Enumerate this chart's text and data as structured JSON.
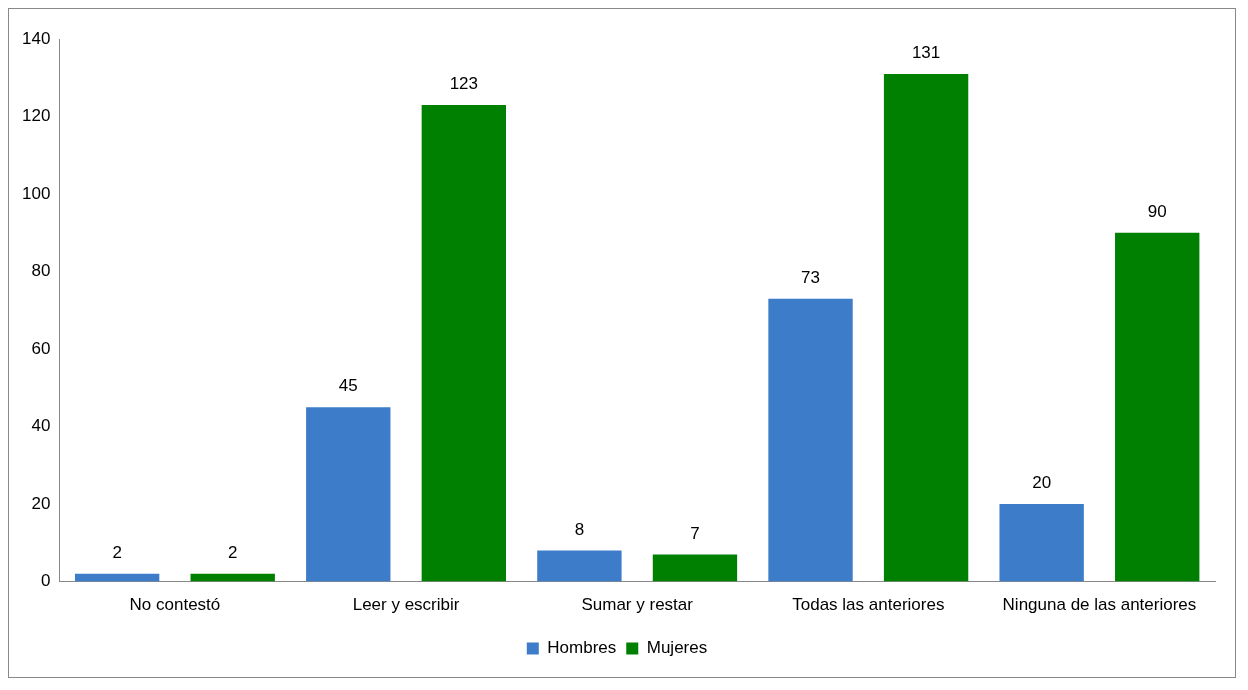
{
  "chart_data": {
    "type": "bar",
    "categories": [
      "No contestó",
      "Leer y escribir",
      "Sumar y restar",
      "Todas las anteriores",
      "Ninguna de las anteriores"
    ],
    "series": [
      {
        "name": "Hombres",
        "color": "#3d7cc9",
        "values": [
          2,
          45,
          8,
          73,
          20
        ]
      },
      {
        "name": "Mujeres",
        "color": "#008000",
        "values": [
          2,
          123,
          7,
          131,
          90
        ]
      }
    ],
    "ylim": [
      0,
      140
    ],
    "yticks": [
      0,
      20,
      40,
      60,
      80,
      100,
      120,
      140
    ],
    "grid": false,
    "legend": "bottom",
    "data_labels": true
  }
}
